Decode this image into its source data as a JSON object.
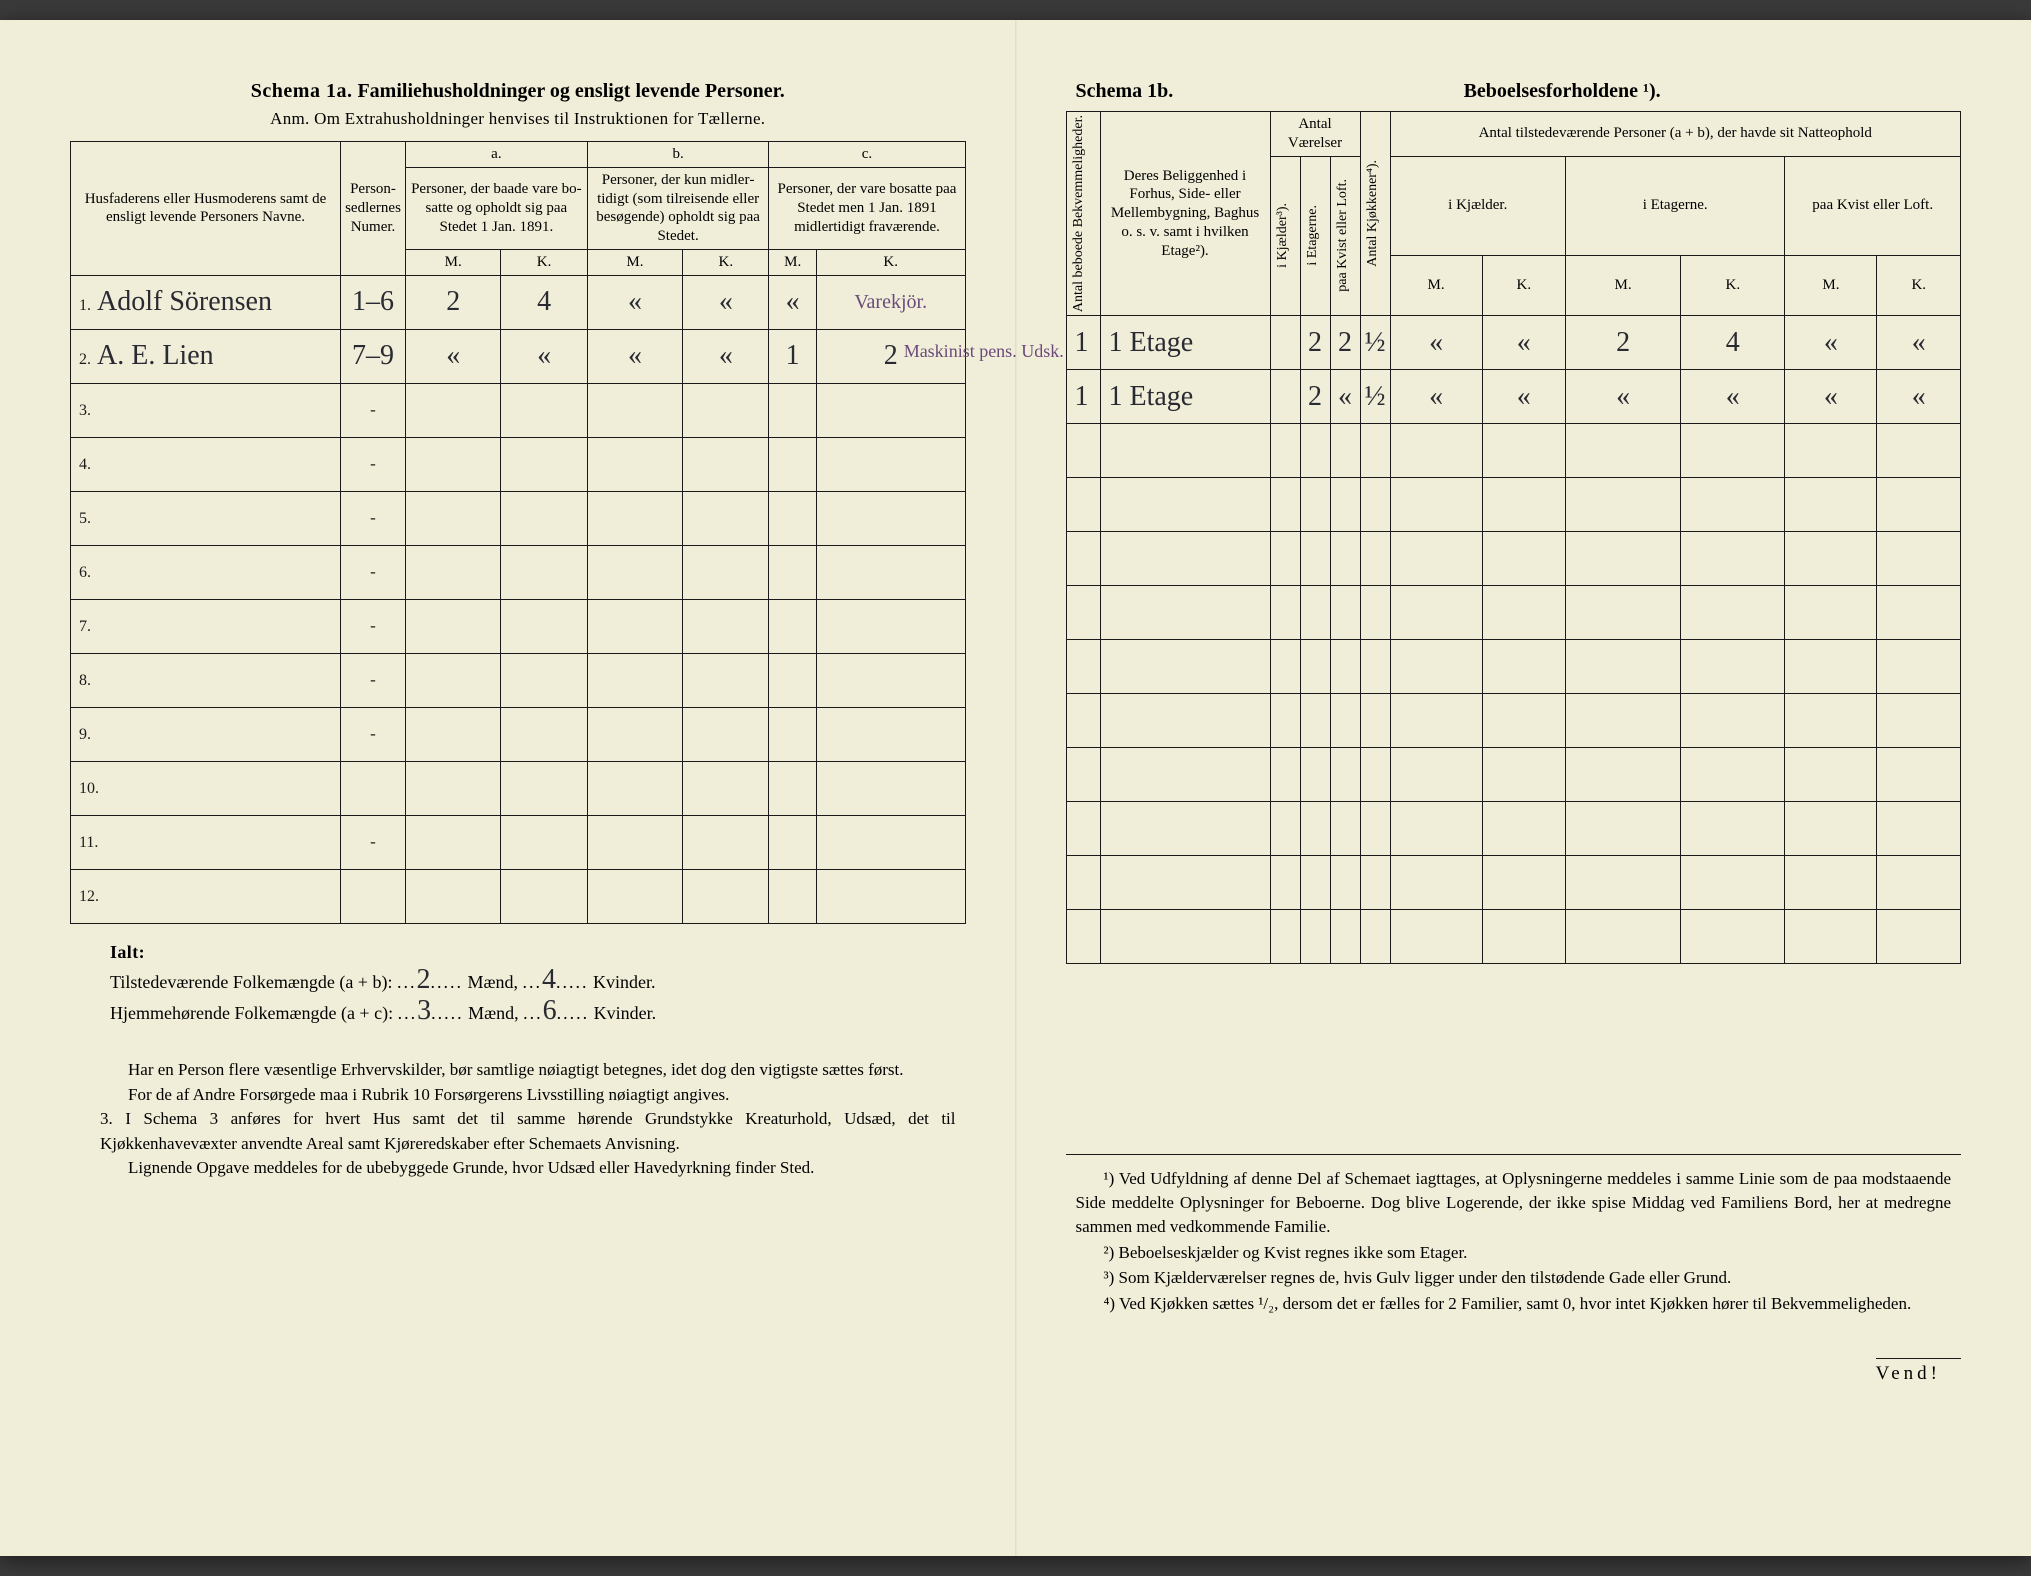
{
  "left": {
    "schema_label": "Schema 1a.",
    "title": "Familiehusholdninger og ensligt levende Personer.",
    "anm": "Anm. Om Extrahusholdninger henvises til Instruktionen for Tællerne.",
    "headers": {
      "col1": "Husfaderens eller Husmode­rens samt de ensligt levende Personers Navne.",
      "col2": "Person­sedler­nes Numer.",
      "a_label": "a.",
      "a_text": "Personer, der baade vare bo­satte og opholdt sig paa Stedet 1 Jan. 1891.",
      "b_label": "b.",
      "b_text": "Personer, der kun midler­tidigt (som tilreisende eller besøgende) opholdt sig paa Stedet.",
      "c_label": "c.",
      "c_text": "Personer, der vare bosatte paa Stedet men 1 Jan. 1891 midler­tidigt fra­værende.",
      "M": "M.",
      "K": "K."
    },
    "rows": [
      {
        "n": "1.",
        "name": "Adolf Sörensen",
        "num": "1–6",
        "aM": "2",
        "aK": "4",
        "bM": "«",
        "bK": "«",
        "cM": "«",
        "cK": "Varekjör.",
        "note": ""
      },
      {
        "n": "2.",
        "name": "A. E. Lien",
        "num": "7–9",
        "aM": "«",
        "aK": "«",
        "bM": "«",
        "bK": "«",
        "cM": "1",
        "cK": "2",
        "note": "Maskinist pens. Udsk."
      },
      {
        "n": "3.",
        "name": "",
        "num": "-",
        "aM": "",
        "aK": "",
        "bM": "",
        "bK": "",
        "cM": "",
        "cK": "",
        "note": ""
      },
      {
        "n": "4.",
        "name": "",
        "num": "-",
        "aM": "",
        "aK": "",
        "bM": "",
        "bK": "",
        "cM": "",
        "cK": "",
        "note": ""
      },
      {
        "n": "5.",
        "name": "",
        "num": "-",
        "aM": "",
        "aK": "",
        "bM": "",
        "bK": "",
        "cM": "",
        "cK": "",
        "note": ""
      },
      {
        "n": "6.",
        "name": "",
        "num": "-",
        "aM": "",
        "aK": "",
        "bM": "",
        "bK": "",
        "cM": "",
        "cK": "",
        "note": ""
      },
      {
        "n": "7.",
        "name": "",
        "num": "-",
        "aM": "",
        "aK": "",
        "bM": "",
        "bK": "",
        "cM": "",
        "cK": "",
        "note": ""
      },
      {
        "n": "8.",
        "name": "",
        "num": "-",
        "aM": "",
        "aK": "",
        "bM": "",
        "bK": "",
        "cM": "",
        "cK": "",
        "note": ""
      },
      {
        "n": "9.",
        "name": "",
        "num": "-",
        "aM": "",
        "aK": "",
        "bM": "",
        "bK": "",
        "cM": "",
        "cK": "",
        "note": ""
      },
      {
        "n": "10.",
        "name": "",
        "num": "",
        "aM": "",
        "aK": "",
        "bM": "",
        "bK": "",
        "cM": "",
        "cK": "",
        "note": ""
      },
      {
        "n": "11.",
        "name": "",
        "num": "-",
        "aM": "",
        "aK": "",
        "bM": "",
        "bK": "",
        "cM": "",
        "cK": "",
        "note": ""
      },
      {
        "n": "12.",
        "name": "",
        "num": "",
        "aM": "",
        "aK": "",
        "bM": "",
        "bK": "",
        "cM": "",
        "cK": "",
        "note": ""
      }
    ],
    "totals": {
      "ialt": "Ialt:",
      "line1_label": "Tilstedeværende Folkemængde (a + b):",
      "line1_m": "2",
      "line1_mword": "Mænd,",
      "line1_k": "4",
      "line1_kword": "Kvinder.",
      "line2_label": "Hjemmehørende Folkemængde (a + c):",
      "line2_m": "3",
      "line2_mword": "Mænd,",
      "line2_k": "6",
      "line2_kword": "Kvinder."
    },
    "bodytext": {
      "p1": "Har en Person flere væsentlige Erhvervskilder, bør samtlige nøiagtigt betegnes, idet dog den vigtigste sættes først.",
      "p2": "For de af Andre Forsørgede maa i Rubrik 10 Forsørgerens Livsstilling nøiagtigt angives.",
      "p3_num": "3.",
      "p3": "I Schema 3 anføres for hvert Hus samt det til samme hørende Grund­stykke Kreaturhold, Udsæd, det til Kjøkkenhavevæxter anvendte Areal samt Kjøreredskaber efter Schemaets Anvisning.",
      "p4": "Lignende Opgave meddeles for de ubebyggede Grunde, hvor Udsæd eller Havedyrkning finder Sted."
    }
  },
  "right": {
    "schema_label": "Schema 1b.",
    "title": "Beboelsesforholdene ¹).",
    "headers": {
      "col1": "Antal beboede Bekvemmeligheder.",
      "col2": "Deres Beliggenhed i Forhus, Side- eller Mellembygning, Baghus o. s. v. samt i hvilken Etage²).",
      "grp_rooms": "Antal Værelser",
      "col3": "i Kjælder³).",
      "col4": "i Etagerne.",
      "col5": "paa Kvist eller Loft.",
      "col6": "Antal Kjøkkener⁴).",
      "grp_pers": "Antal tilstedeværende Personer (a + b), der havde sit Natteophold",
      "sub1": "i Kjæl­der.",
      "sub2": "i Etagerne.",
      "sub3": "paa Kvist eller Loft.",
      "M": "M.",
      "K": "K."
    },
    "rows": [
      {
        "c1": "1",
        "c2": "1 Etage",
        "r1": "",
        "r2": "2",
        "r3": "2",
        "r4": "½",
        "p1m": "«",
        "p1k": "«",
        "p2m": "2",
        "p2k": "4",
        "p3m": "«",
        "p3k": "«"
      },
      {
        "c1": "1",
        "c2": "1 Etage",
        "r1": "",
        "r2": "2",
        "r3": "«",
        "r4": "½",
        "p1m": "«",
        "p1k": "«",
        "p2m": "«",
        "p2k": "«",
        "p3m": "«",
        "p3k": "«"
      },
      {
        "c1": "",
        "c2": "",
        "r1": "",
        "r2": "",
        "r3": "",
        "r4": "",
        "p1m": "",
        "p1k": "",
        "p2m": "",
        "p2k": "",
        "p3m": "",
        "p3k": ""
      },
      {
        "c1": "",
        "c2": "",
        "r1": "",
        "r2": "",
        "r3": "",
        "r4": "",
        "p1m": "",
        "p1k": "",
        "p2m": "",
        "p2k": "",
        "p3m": "",
        "p3k": ""
      },
      {
        "c1": "",
        "c2": "",
        "r1": "",
        "r2": "",
        "r3": "",
        "r4": "",
        "p1m": "",
        "p1k": "",
        "p2m": "",
        "p2k": "",
        "p3m": "",
        "p3k": ""
      },
      {
        "c1": "",
        "c2": "",
        "r1": "",
        "r2": "",
        "r3": "",
        "r4": "",
        "p1m": "",
        "p1k": "",
        "p2m": "",
        "p2k": "",
        "p3m": "",
        "p3k": ""
      },
      {
        "c1": "",
        "c2": "",
        "r1": "",
        "r2": "",
        "r3": "",
        "r4": "",
        "p1m": "",
        "p1k": "",
        "p2m": "",
        "p2k": "",
        "p3m": "",
        "p3k": ""
      },
      {
        "c1": "",
        "c2": "",
        "r1": "",
        "r2": "",
        "r3": "",
        "r4": "",
        "p1m": "",
        "p1k": "",
        "p2m": "",
        "p2k": "",
        "p3m": "",
        "p3k": ""
      },
      {
        "c1": "",
        "c2": "",
        "r1": "",
        "r2": "",
        "r3": "",
        "r4": "",
        "p1m": "",
        "p1k": "",
        "p2m": "",
        "p2k": "",
        "p3m": "",
        "p3k": ""
      },
      {
        "c1": "",
        "c2": "",
        "r1": "",
        "r2": "",
        "r3": "",
        "r4": "",
        "p1m": "",
        "p1k": "",
        "p2m": "",
        "p2k": "",
        "p3m": "",
        "p3k": ""
      },
      {
        "c1": "",
        "c2": "",
        "r1": "",
        "r2": "",
        "r3": "",
        "r4": "",
        "p1m": "",
        "p1k": "",
        "p2m": "",
        "p2k": "",
        "p3m": "",
        "p3k": ""
      },
      {
        "c1": "",
        "c2": "",
        "r1": "",
        "r2": "",
        "r3": "",
        "r4": "",
        "p1m": "",
        "p1k": "",
        "p2m": "",
        "p2k": "",
        "p3m": "",
        "p3k": ""
      }
    ],
    "footnotes": {
      "f1": "¹) Ved Udfyldning af denne Del af Schemaet iagttages, at Oplysningerne meddeles i samme Linie som de paa modstaaende Side meddelte Oplysninger for Beboerne. Dog blive Logerende, der ikke spise Middag ved Familiens Bord, her at medregne sammen med vedkommende Familie.",
      "f2": "²) Beboelseskjælder og Kvist regnes ikke som Etager.",
      "f3": "³) Som Kjælderværelser regnes de, hvis Gulv ligger under den tilstødende Gade eller Grund.",
      "f4": "⁴) Ved Kjøkken sættes ¹/₂, dersom det er fælles for 2 Familier, samt 0, hvor intet Kjøkken hører til Bekvemmeligheden."
    },
    "vend": "Vend!"
  },
  "style": {
    "paper": "#f0eed8",
    "ink": "#1a1a1a",
    "hand": "#2a2a33",
    "purple": "#6b4a7a"
  }
}
